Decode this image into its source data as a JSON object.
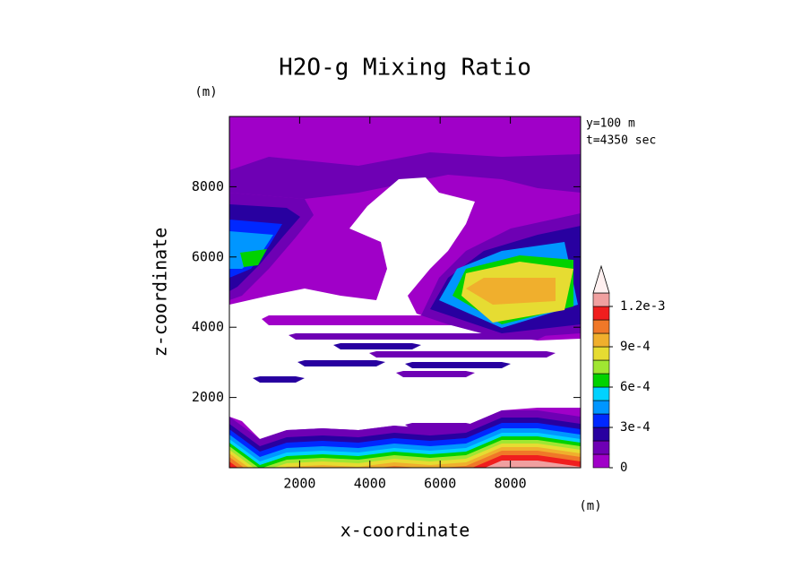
{
  "chart_data": {
    "type": "contour",
    "title": "H2O-g Mixing Ratio",
    "xlabel": "x-coordinate",
    "ylabel": "z-coordinate",
    "xunit": "(m)",
    "yunit": "(m)",
    "annotations": [
      "y=100 m",
      "t=4350 sec"
    ],
    "xlim": [
      0,
      10000
    ],
    "ylim": [
      0,
      10000
    ],
    "xticks": [
      2000,
      4000,
      6000,
      8000
    ],
    "yticks": [
      2000,
      4000,
      6000,
      8000
    ],
    "colorbar": {
      "levels": [
        0,
        0.0001,
        0.0002,
        0.0003,
        0.0004,
        0.0005,
        0.0006,
        0.0007,
        0.0008,
        0.0009,
        0.001,
        0.0011,
        0.0012,
        0.0013
      ],
      "colors": [
        "#a000c8",
        "#6e00b4",
        "#2800a0",
        "#0028ff",
        "#0096ff",
        "#00d2ff",
        "#00d200",
        "#a0e632",
        "#e6dc32",
        "#f0af2d",
        "#f07828",
        "#f01e1e",
        "#f0a0a0"
      ],
      "over_color": "#fff0f0",
      "ticks": [
        {
          "value": 0,
          "label": "0"
        },
        {
          "value": 0.0003,
          "label": "3e-4"
        },
        {
          "value": 0.0006,
          "label": "6e-4"
        },
        {
          "value": 0.0009,
          "label": "9e-4"
        },
        {
          "value": 0.0012,
          "label": "1.2e-3"
        }
      ]
    }
  }
}
